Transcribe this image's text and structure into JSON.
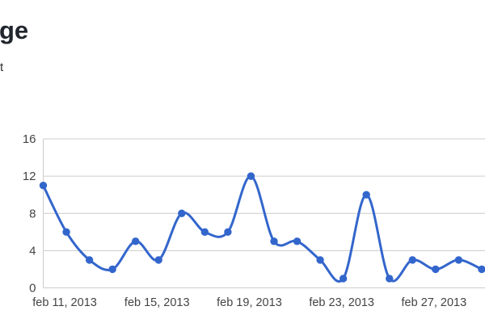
{
  "page": {
    "title_visible": "ge",
    "subtitle_visible": "t"
  },
  "chart_data": {
    "type": "line",
    "title": "",
    "xlabel": "",
    "ylabel": "",
    "x_dates": [
      "feb 10, 2013",
      "feb 11, 2013",
      "feb 12, 2013",
      "feb 13, 2013",
      "feb 14, 2013",
      "feb 15, 2013",
      "feb 16, 2013",
      "feb 17, 2013",
      "feb 18, 2013",
      "feb 19, 2013",
      "feb 20, 2013",
      "feb 21, 2013",
      "feb 22, 2013",
      "feb 23, 2013",
      "feb 24, 2013",
      "feb 25, 2013",
      "feb 26, 2013",
      "feb 27, 2013",
      "feb 28, 2013",
      "mar 1, 2013"
    ],
    "values": [
      11,
      6,
      3,
      2,
      5,
      3,
      8,
      6,
      6,
      12,
      5,
      5,
      3,
      1,
      10,
      1,
      3,
      2,
      3,
      2
    ],
    "x_tick_labels": [
      "feb 11, 2013",
      "feb 15, 2013",
      "feb 19, 2013",
      "feb 23, 2013",
      "feb 27, 2013"
    ],
    "x_tick_point_indices": [
      1,
      5,
      9,
      13,
      17
    ],
    "y_ticks": [
      0,
      4,
      8,
      12,
      16
    ],
    "ylim": [
      0,
      16
    ],
    "grid": "horizontal",
    "legend": "none",
    "curve": "smooth",
    "line_color": "#3366cc",
    "point_color": "#3366cc",
    "axis_label_color": "#444444",
    "gridline_color": "#cccccc",
    "background_color": "#ffffff"
  }
}
